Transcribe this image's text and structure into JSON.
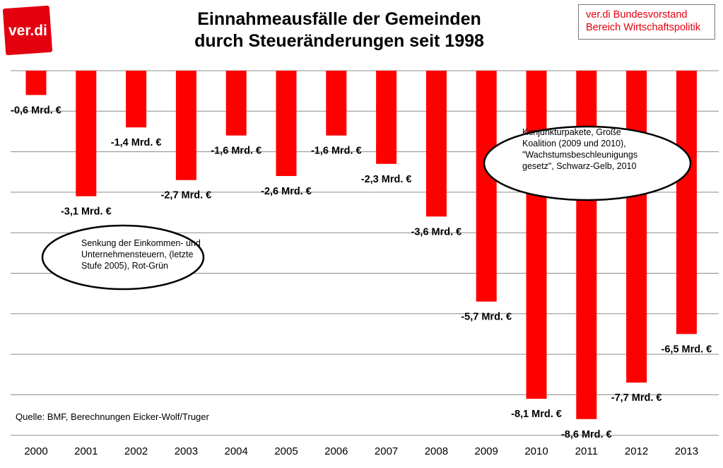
{
  "title_line1": "Einnahmeausfälle der Gemeinden",
  "title_line2": "durch Steueränderungen seit 1998",
  "logo_text": "ver.di",
  "org_line1": "ver.di Bundesvorstand",
  "org_line2": "Bereich Wirtschaftspolitik",
  "source": "Quelle: BMF, Berechnungen Eicker-Wolf/Truger",
  "callouts": [
    {
      "lines": [
        "Senkung der Einkommen- und",
        "Unternehmensteuern,  (letzte",
        "Stufe 2005), Rot-Grün"
      ]
    },
    {
      "lines": [
        "Konjunkturpakete, Große",
        "Koalition (2009 und 2010),",
        "\"Wachstumsbeschleunigungs",
        "gesetz\", Schwarz-Gelb, 2010"
      ]
    }
  ],
  "colors": {
    "bar": "#ff0000",
    "org_text": "#e3000f",
    "grid": "#8c8c8c",
    "logo_bg": "#e3000f"
  },
  "chart_data": {
    "type": "bar",
    "categories": [
      "2000",
      "2001",
      "2002",
      "2003",
      "2004",
      "2005",
      "2006",
      "2007",
      "2008",
      "2009",
      "2010",
      "2011",
      "2012",
      "2013"
    ],
    "values": [
      -0.6,
      -3.1,
      -1.4,
      -2.7,
      -1.6,
      -2.6,
      -1.6,
      -2.3,
      -3.6,
      -5.7,
      -8.1,
      -8.6,
      -7.7,
      -6.5
    ],
    "data_labels": [
      "-0,6 Mrd. €",
      "-3,1 Mrd. €",
      "-1,4 Mrd. €",
      "-2,7 Mrd. €",
      "-1,6 Mrd. €",
      "-2,6 Mrd. €",
      "-1,6 Mrd. €",
      "-2,3 Mrd. €",
      "-3,6 Mrd. €",
      "-5,7 Mrd. €",
      "-8,1 Mrd. €",
      "-8,6 Mrd. €",
      "-7,7 Mrd. €",
      "-6,5 Mrd. €"
    ],
    "ylim": [
      -9,
      0
    ],
    "grid": true,
    "title": "Einnahmeausfälle der Gemeinden durch Steueränderungen seit 1998"
  }
}
